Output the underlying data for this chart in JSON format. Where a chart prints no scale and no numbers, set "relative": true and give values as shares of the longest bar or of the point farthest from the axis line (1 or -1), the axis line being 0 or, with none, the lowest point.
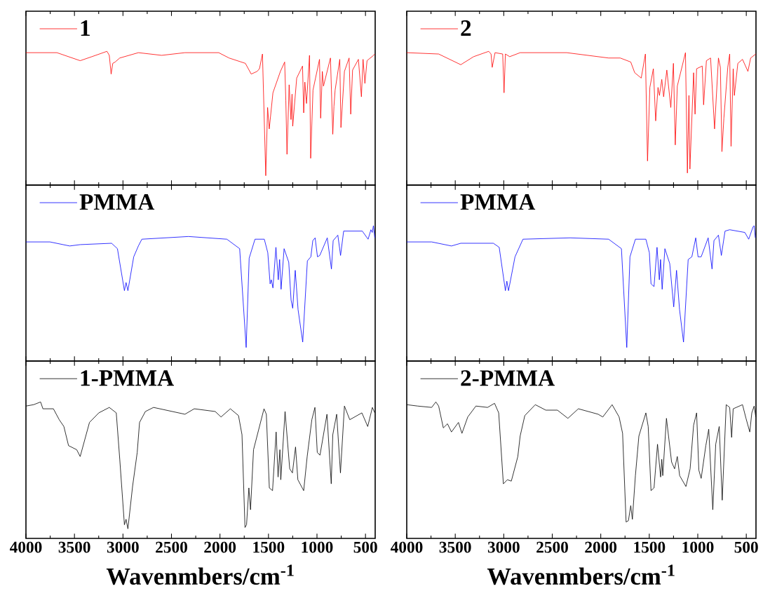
{
  "chart_data": [
    {
      "type": "line",
      "relative": true,
      "xlim": [
        4000,
        400
      ],
      "xticks": [
        4000,
        3500,
        3000,
        2500,
        2000,
        1500,
        1000,
        500
      ],
      "tick_labels": false,
      "legend": "top left",
      "x": [
        4000,
        3681,
        3441,
        3321,
        3165,
        3141,
        3122,
        3105,
        3081,
        3033,
        2841,
        2601,
        2361,
        2013,
        1906,
        1738,
        1678,
        1617,
        1593,
        1562,
        1528,
        1509,
        1492,
        1454,
        1377,
        1333,
        1321,
        1309,
        1287,
        1268,
        1257,
        1250,
        1209,
        1149,
        1137,
        1125,
        1108,
        1077,
        1065,
        1041,
        974,
        962,
        945,
        933,
        861,
        837,
        825,
        813,
        765,
        753,
        717,
        669,
        652,
        633,
        573,
        542,
        525,
        506,
        484,
        417,
        404
      ],
      "series": [
        {
          "name": "1",
          "color": "#ff0000",
          "values": [
            0.99,
            0.99,
            0.93,
            0.96,
            1.0,
            0.97,
            0.83,
            0.91,
            0.92,
            0.95,
            0.99,
            0.97,
            0.99,
            0.99,
            0.95,
            0.91,
            0.83,
            0.85,
            0.87,
            0.98,
            0.07,
            0.58,
            0.42,
            0.69,
            0.85,
            0.92,
            0.63,
            0.23,
            0.75,
            0.49,
            0.68,
            0.44,
            0.8,
            0.89,
            0.54,
            0.77,
            0.61,
            0.97,
            0.2,
            0.71,
            0.94,
            0.5,
            0.85,
            0.74,
            0.95,
            0.38,
            0.59,
            0.71,
            0.94,
            0.43,
            0.85,
            0.95,
            0.53,
            0.86,
            0.94,
            0.66,
            0.94,
            0.76,
            0.93,
            0.97,
            0.98
          ]
        }
      ]
    },
    {
      "type": "line",
      "relative": true,
      "xlim": [
        4000,
        400
      ],
      "xticks": [
        4000,
        3500,
        3000,
        2500,
        2000,
        1500,
        1000,
        500
      ],
      "tick_labels": false,
      "legend": "top left",
      "x": [
        4000,
        3753,
        3549,
        3441,
        3117,
        3057,
        2985,
        2968,
        2949,
        2889,
        2841,
        2805,
        2325,
        1929,
        1797,
        1730,
        1699,
        1639,
        1543,
        1507,
        1483,
        1471,
        1454,
        1423,
        1399,
        1385,
        1370,
        1339,
        1291,
        1267,
        1250,
        1224,
        1195,
        1147,
        1099,
        1063,
        1043,
        1019,
        995,
        971,
        894,
        851,
        833,
        785,
        757,
        725,
        677,
        533,
        473,
        444,
        430,
        418,
        404
      ],
      "series": [
        {
          "name": "PMMA",
          "color": "#0000ff",
          "values": [
            0.88,
            0.88,
            0.85,
            0.86,
            0.87,
            0.83,
            0.52,
            0.58,
            0.52,
            0.77,
            0.85,
            0.9,
            0.92,
            0.9,
            0.83,
            0.1,
            0.76,
            0.9,
            0.9,
            0.8,
            0.57,
            0.6,
            0.54,
            0.84,
            0.6,
            0.75,
            0.53,
            0.83,
            0.73,
            0.45,
            0.39,
            0.67,
            0.38,
            0.14,
            0.74,
            0.77,
            0.89,
            0.91,
            0.77,
            0.78,
            0.91,
            0.68,
            0.89,
            0.93,
            0.78,
            0.96,
            0.96,
            0.96,
            0.9,
            0.97,
            0.95,
            1.0,
            0.91
          ]
        }
      ]
    },
    {
      "type": "line",
      "relative": true,
      "xlim": [
        4000,
        400
      ],
      "xticks": [
        4000,
        3500,
        3000,
        2500,
        2000,
        1500,
        1000,
        500
      ],
      "tick_labels": "x",
      "legend": "top left",
      "xlabel": "Wavenmbers/cm$^{-1}$",
      "x": [
        4000,
        3921,
        3849,
        3825,
        3717,
        3657,
        3609,
        3561,
        3477,
        3441,
        3345,
        3249,
        3141,
        3069,
        3033,
        2985,
        2968,
        2949,
        2901,
        2853,
        2829,
        2769,
        2685,
        2361,
        2265,
        2049,
        1989,
        1893,
        1809,
        1773,
        1742,
        1726,
        1702,
        1685,
        1654,
        1546,
        1522,
        1491,
        1458,
        1421,
        1401,
        1382,
        1373,
        1329,
        1281,
        1253,
        1221,
        1197,
        1137,
        1101,
        1053,
        1021,
        997,
        969,
        897,
        853,
        837,
        797,
        758,
        717,
        662,
        537,
        477,
        429,
        404
      ],
      "series": [
        {
          "name": "1-PMMA",
          "color": "#000000",
          "values": [
            0.97,
            0.98,
            1.0,
            0.95,
            0.95,
            0.87,
            0.82,
            0.68,
            0.65,
            0.6,
            0.85,
            0.92,
            0.96,
            0.92,
            0.58,
            0.1,
            0.14,
            0.07,
            0.38,
            0.63,
            0.85,
            0.93,
            0.96,
            0.91,
            0.95,
            0.93,
            0.89,
            0.95,
            0.9,
            0.76,
            0.08,
            0.1,
            0.37,
            0.21,
            0.65,
            0.95,
            0.91,
            0.37,
            0.35,
            0.78,
            0.45,
            0.65,
            0.43,
            0.93,
            0.51,
            0.48,
            0.67,
            0.43,
            0.35,
            0.6,
            0.87,
            0.96,
            0.63,
            0.61,
            0.91,
            0.4,
            0.76,
            0.91,
            0.48,
            0.97,
            0.87,
            0.92,
            0.82,
            0.96,
            0.92
          ]
        }
      ]
    },
    {
      "type": "line",
      "relative": true,
      "xlim": [
        4000,
        400
      ],
      "xticks": [
        4000,
        3500,
        3000,
        2500,
        2000,
        1500,
        1000,
        500
      ],
      "tick_labels": false,
      "legend": "top left",
      "x": [
        4000,
        3671,
        3443,
        3311,
        3155,
        3131,
        3119,
        3090,
        3011,
        2997,
        2983,
        2939,
        2831,
        2351,
        1919,
        1799,
        1691,
        1650,
        1583,
        1540,
        1518,
        1494,
        1458,
        1434,
        1410,
        1395,
        1371,
        1352,
        1319,
        1278,
        1251,
        1232,
        1211,
        1127,
        1107,
        1091,
        1081,
        1043,
        1028,
        1012,
        954,
        940,
        911,
        868,
        827,
        787,
        767,
        751,
        731,
        691,
        671,
        657,
        635,
        623,
        587,
        539,
        483,
        455,
        402
      ],
      "series": [
        {
          "name": "2",
          "color": "#ff0000",
          "values": [
            0.99,
            0.98,
            0.9,
            0.96,
            1.0,
            0.98,
            0.88,
            0.99,
            0.98,
            0.69,
            0.98,
            0.96,
            0.99,
            0.99,
            0.95,
            0.95,
            0.92,
            0.84,
            0.8,
            0.98,
            0.18,
            0.73,
            0.87,
            0.48,
            0.73,
            0.67,
            0.79,
            0.66,
            0.86,
            0.58,
            0.91,
            0.3,
            0.74,
            0.99,
            0.09,
            0.67,
            0.12,
            0.84,
            0.53,
            0.87,
            0.89,
            0.6,
            0.93,
            0.95,
            0.42,
            0.95,
            0.88,
            0.25,
            0.5,
            0.88,
            0.98,
            0.29,
            0.87,
            0.67,
            0.91,
            0.94,
            0.85,
            0.95,
            0.98
          ]
        }
      ]
    },
    {
      "type": "line",
      "relative": true,
      "xlim": [
        4000,
        400
      ],
      "xticks": [
        4000,
        3500,
        3000,
        2500,
        2000,
        1500,
        1000,
        500
      ],
      "tick_labels": false,
      "legend": "top left",
      "x": [
        4000,
        3743,
        3539,
        3443,
        3107,
        3047,
        2983,
        2968,
        2951,
        2884,
        2802,
        2315,
        1919,
        1787,
        1732,
        1699,
        1643,
        1535,
        1499,
        1482,
        1451,
        1420,
        1396,
        1384,
        1367,
        1339,
        1289,
        1248,
        1219,
        1188,
        1147,
        1099,
        1061,
        1021,
        997,
        965,
        893,
        853,
        833,
        787,
        757,
        719,
        671,
        515,
        475,
        431,
        419,
        407
      ],
      "series": [
        {
          "name": "PMMA",
          "color": "#0000ff",
          "values": [
            0.88,
            0.88,
            0.85,
            0.87,
            0.87,
            0.84,
            0.52,
            0.59,
            0.52,
            0.77,
            0.9,
            0.91,
            0.9,
            0.83,
            0.1,
            0.77,
            0.9,
            0.9,
            0.8,
            0.57,
            0.55,
            0.84,
            0.6,
            0.75,
            0.53,
            0.83,
            0.72,
            0.4,
            0.67,
            0.38,
            0.14,
            0.75,
            0.77,
            0.91,
            0.77,
            0.77,
            0.91,
            0.68,
            0.89,
            0.93,
            0.78,
            0.96,
            0.97,
            0.95,
            0.9,
            0.99,
            1.0,
            0.91
          ]
        }
      ]
    },
    {
      "type": "line",
      "relative": true,
      "xlim": [
        4000,
        400
      ],
      "xticks": [
        4000,
        3500,
        3000,
        2500,
        2000,
        1500,
        1000,
        500
      ],
      "tick_labels": "x",
      "legend": "top left",
      "xlabel": "Wavenmbers/cm$^{-1}$",
      "x": [
        4000,
        3887,
        3743,
        3700,
        3671,
        3623,
        3580,
        3539,
        3467,
        3431,
        3371,
        3287,
        3167,
        3095,
        3052,
        3004,
        2963,
        2922,
        2855,
        2831,
        2783,
        2675,
        2567,
        2447,
        2339,
        2231,
        2027,
        1979,
        1883,
        1811,
        1775,
        1739,
        1715,
        1691,
        1674,
        1643,
        1607,
        1535,
        1511,
        1482,
        1451,
        1415,
        1383,
        1371,
        1361,
        1323,
        1270,
        1239,
        1211,
        1187,
        1122,
        1079,
        1043,
        1012,
        989,
        965,
        917,
        887,
        845,
        815,
        779,
        748,
        707,
        671,
        651,
        635,
        539,
        503,
        464,
        443,
        419,
        402
      ],
      "series": [
        {
          "name": "2-PMMA",
          "color": "#000000",
          "values": [
            0.98,
            0.97,
            0.96,
            1.0,
            0.97,
            0.81,
            0.84,
            0.78,
            0.85,
            0.77,
            0.89,
            0.97,
            0.96,
            0.99,
            0.92,
            0.4,
            0.43,
            0.42,
            0.6,
            0.75,
            0.9,
            0.98,
            0.94,
            0.94,
            0.88,
            0.95,
            0.91,
            0.89,
            0.98,
            0.89,
            0.77,
            0.12,
            0.13,
            0.24,
            0.14,
            0.46,
            0.75,
            0.92,
            0.82,
            0.35,
            0.37,
            0.69,
            0.45,
            0.58,
            0.46,
            0.88,
            0.56,
            0.51,
            0.6,
            0.46,
            0.38,
            0.51,
            0.83,
            0.92,
            0.5,
            0.44,
            0.68,
            0.8,
            0.21,
            0.69,
            0.82,
            0.28,
            0.98,
            0.96,
            0.74,
            0.95,
            0.98,
            0.88,
            0.78,
            0.92,
            0.97,
            0.89
          ]
        }
      ]
    }
  ]
}
